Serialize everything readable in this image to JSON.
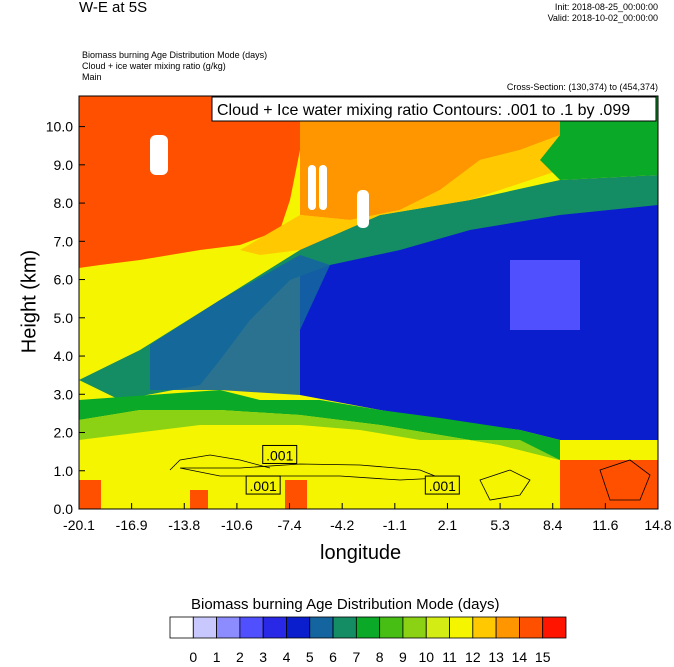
{
  "header": {
    "title": "W-E at 5S",
    "init": "Init: 2018-08-25_00:00:00",
    "valid": "Valid: 2018-10-02_00:00:00",
    "field1": "Biomass burning Age Distribution Mode   (days)",
    "field2": "Cloud + ice water mixing ratio   (g/kg)",
    "field3": "Main",
    "cross_section": "Cross-Section: (130,374) to (454,374)"
  },
  "chart_data": {
    "type": "heatmap",
    "xlabel": "longitude",
    "ylabel": "Height (km)",
    "x_ticks": [
      "-20.1",
      "-16.9",
      "-13.8",
      "-10.6",
      "-7.4",
      "-4.2",
      "-1.1",
      "2.1",
      "5.3",
      "8.4",
      "11.6",
      "14.8"
    ],
    "y_ticks": [
      "0.0",
      "1.0",
      "2.0",
      "3.0",
      "4.0",
      "5.0",
      "6.0",
      "7.0",
      "8.0",
      "9.0",
      "10.0"
    ],
    "xlim": [
      -20.1,
      14.8
    ],
    "ylim": [
      0.0,
      10.8
    ],
    "contour_title": "Cloud + Ice water mixing ratio Contours: .001 to .1 by .099",
    "contour_labels": [
      {
        "text": ".001",
        "x": -8.0,
        "y": 1.4
      },
      {
        "text": ".001",
        "x": -9.0,
        "y": 0.6
      },
      {
        "text": ".001",
        "x": 1.8,
        "y": 0.6
      }
    ],
    "colorbar": {
      "title": "Biomass burning Age Distribution Mode  (days)",
      "labels": [
        "0",
        "1",
        "2",
        "3",
        "4",
        "5",
        "6",
        "7",
        "8",
        "9",
        "10",
        "11",
        "12",
        "13",
        "14",
        "15"
      ],
      "colors": [
        "#ffffff",
        "#c8c8ff",
        "#8c8cff",
        "#5050ff",
        "#2828e6",
        "#0a1ecd",
        "#1464a0",
        "#148c64",
        "#0aaa28",
        "#46be14",
        "#8cd214",
        "#d2ec14",
        "#f5f500",
        "#ffc800",
        "#ff9600",
        "#ff5000",
        "#ff1400"
      ]
    },
    "regions": {
      "upper_west_age_days": 14.5,
      "upper_center_age_days": 14,
      "mid_west_age_days": 11.5,
      "mid_center_age_days": 6.5,
      "east_free_trop_age_days": 4.5,
      "boundary_layer_age_days": 11.5
    }
  }
}
